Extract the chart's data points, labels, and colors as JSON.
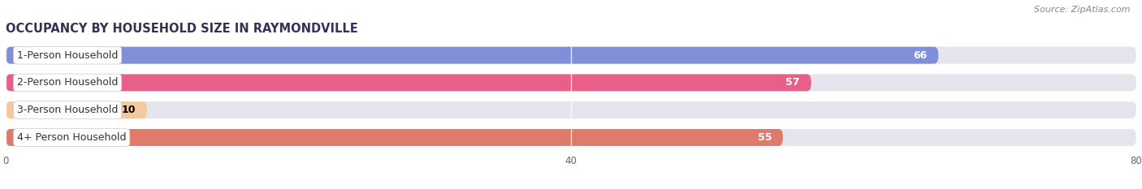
{
  "title": "OCCUPANCY BY HOUSEHOLD SIZE IN RAYMONDVILLE",
  "source": "Source: ZipAtlas.com",
  "categories": [
    "1-Person Household",
    "2-Person Household",
    "3-Person Household",
    "4+ Person Household"
  ],
  "values": [
    66,
    57,
    10,
    55
  ],
  "bar_colors": [
    "#8090d8",
    "#e8608a",
    "#f5c99a",
    "#e07a6a"
  ],
  "bar_bg_color": "#e5e5ee",
  "xlim": [
    0,
    80
  ],
  "xticks": [
    0,
    40,
    80
  ],
  "label_colors": [
    "white",
    "white",
    "black",
    "white"
  ],
  "figsize": [
    14.06,
    2.33
  ],
  "dpi": 100,
  "title_fontsize": 10.5,
  "source_fontsize": 8,
  "bar_label_fontsize": 9,
  "category_fontsize": 9,
  "bar_height": 0.62,
  "background_color": "#ffffff"
}
